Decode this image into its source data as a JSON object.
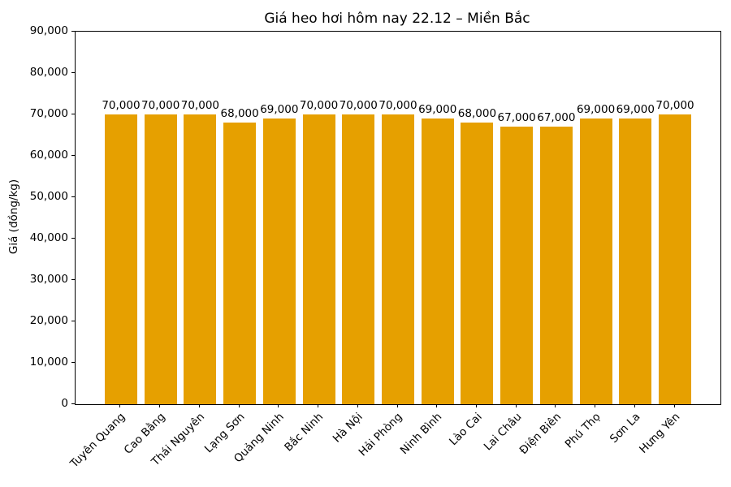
{
  "chart_data": {
    "type": "bar",
    "title": "Giá heo hơi hôm nay 22.12 – Miền Bắc",
    "xlabel": "",
    "ylabel": "Giá (đồng/kg)",
    "categories": [
      "Tuyên Quang",
      "Cao Bằng",
      "Thái Nguyên",
      "Lạng Sơn",
      "Quảng Ninh",
      "Bắc Ninh",
      "Hà Nội",
      "Hải Phòng",
      "Ninh Bình",
      "Lào Cai",
      "Lai Châu",
      "Điện Biên",
      "Phú Thọ",
      "Sơn La",
      "Hưng Yên"
    ],
    "values": [
      70000,
      70000,
      70000,
      68000,
      69000,
      70000,
      70000,
      70000,
      69000,
      68000,
      67000,
      67000,
      69000,
      69000,
      70000
    ],
    "bar_labels": [
      "70,000",
      "70,000",
      "70,000",
      "68,000",
      "69,000",
      "70,000",
      "70,000",
      "70,000",
      "69,000",
      "68,000",
      "67,000",
      "67,000",
      "69,000",
      "69,000",
      "70,000"
    ],
    "ylim": [
      0,
      90000
    ],
    "yticks": [
      0,
      10000,
      20000,
      30000,
      40000,
      50000,
      60000,
      70000,
      80000,
      90000
    ],
    "ytick_labels": [
      "0",
      "10,000",
      "20,000",
      "30,000",
      "40,000",
      "50,000",
      "60,000",
      "70,000",
      "80,000",
      "90,000"
    ],
    "bar_color": "#E6A000",
    "axis_color": "#000000",
    "grid": false,
    "legend": null
  }
}
